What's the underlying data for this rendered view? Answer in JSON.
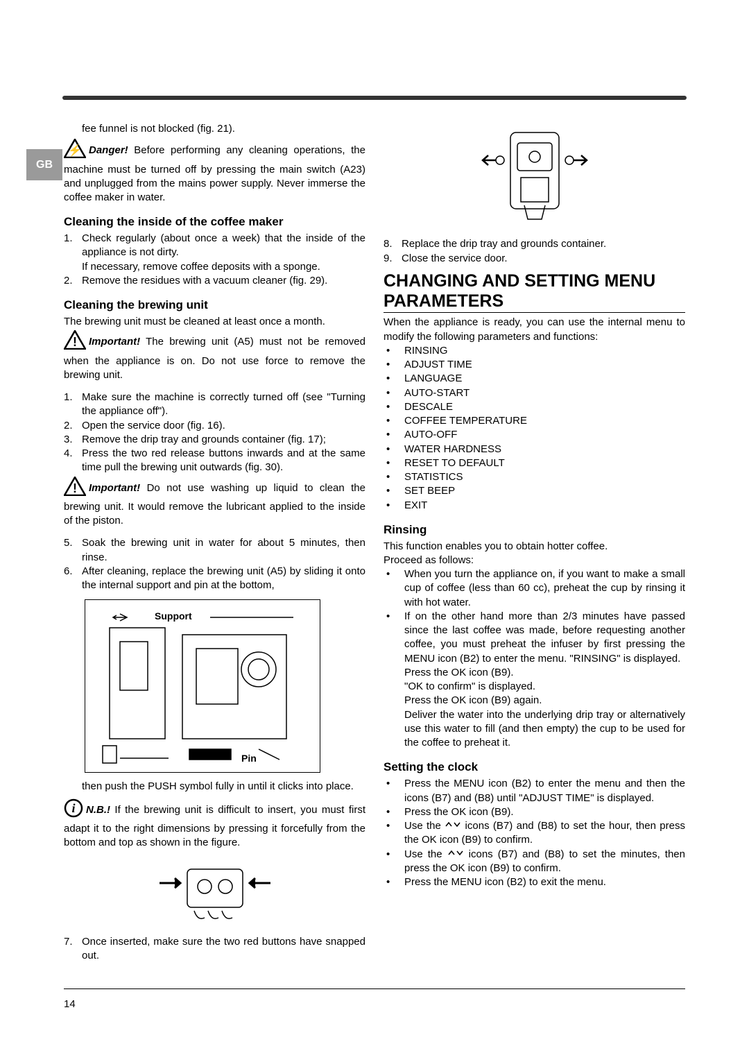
{
  "lang_tab": "GB",
  "page_number": "14",
  "left": {
    "intro_cont": "fee funnel is not blocked (fig. 21).",
    "danger_label": "Danger!",
    "danger_text": "  Before performing any cleaning operations, the machine must be turned off by pressing the main switch (A23) and unplugged from the mains power supply. Never immerse the coffee maker in water.",
    "h_inside": "Cleaning the inside of the coffee maker",
    "inside_1": "Check regularly (about once a week) that the inside of the appliance is not dirty.",
    "inside_1b": "If necessary, remove coffee deposits with a sponge.",
    "inside_2": "Remove the residues with a vacuum cleaner (fig. 29).",
    "h_brew": "Cleaning the brewing unit",
    "brew_intro": "The brewing unit must be cleaned at least once a month.",
    "important_label": "Important!",
    "imp1_text": "  The brewing unit (A5) must not be removed when the appliance is on.  Do not use force to remove the brewing unit.",
    "brew_1": "Make sure the machine is correctly turned off (see \"Turning the appliance off\").",
    "brew_2": "Open the service door (fig. 16).",
    "brew_3": "Remove the drip tray and grounds container (fig. 17);",
    "brew_4": "Press the two red release buttons inwards and at the same time pull the brewing unit outwards (fig. 30).",
    "imp2_text": "  Do not use washing up liquid to clean the brewing unit. It would remove the lubricant applied to the inside of the piston.",
    "brew_5": "Soak the brewing unit in water for about 5 minutes, then rinse.",
    "brew_6": "After cleaning, replace the brewing unit (A5) by sliding it onto the internal support and pin at the bottom,",
    "fig_support": "Support",
    "fig_pin": "Pin",
    "push_text": "then push the PUSH symbol fully in until it clicks into place.",
    "nb_label": "N.B.!",
    "nb_text": "  If the brewing unit is difficult to insert, you must first adapt it to the right dimensions by pressing it forcefully from the bottom and top as shown in the figure.",
    "brew_7": "Once inserted, make sure the two red buttons have snapped out."
  },
  "right": {
    "step_8": "Replace the drip tray and grounds container.",
    "step_9": "Close the service door.",
    "h_menu": "CHANGING AND SETTING MENU PARAMETERS",
    "menu_intro": "When the appliance is ready, you can use the internal menu to modify the following parameters and functions:",
    "menu_items": [
      "RINSING",
      "ADJUST TIME",
      "LANGUAGE",
      "AUTO-START",
      "DESCALE",
      "COFFEE TEMPERATURE",
      "AUTO-OFF",
      "WATER HARDNESS",
      "RESET TO DEFAULT",
      "STATISTICS",
      "SET BEEP",
      "EXIT"
    ],
    "h_rinsing": "Rinsing",
    "rinsing_intro1": "This function enables you to obtain hotter coffee.",
    "rinsing_intro2": "Proceed as follows:",
    "rinsing_b1": "When you turn the appliance on, if you want to make a small cup of coffee (less than 60 cc), preheat the cup by rinsing it with hot water.",
    "rinsing_b2a": "If on the other hand more than 2/3 minutes have passed since the last coffee was made, before requesting another coffee, you must preheat the infuser by first pressing the MENU icon (B2) to enter the menu. \"RINSING\" is displayed.",
    "rinsing_b2b": "Press the OK icon (B9).",
    "rinsing_b2c": "\"OK to confirm\" is displayed.",
    "rinsing_b2d": "Press the OK icon (B9) again.",
    "rinsing_b2e": "Deliver the water into the underlying drip tray or alternatively use this water to fill (and then empty) the cup to be used for the coffee to preheat it.",
    "h_clock": "Setting the clock",
    "clock_b1": "Press the MENU icon (B2) to enter the menu and then the icons (B7) and (B8) until \"ADJUST TIME\" is displayed.",
    "clock_b2": "Press the OK icon (B9).",
    "clock_b3a": "Use the   ",
    "clock_b3b": "   icons (B7) and (B8) to set the hour, then press the OK icon (B9) to confirm.",
    "clock_b4a": "Use the   ",
    "clock_b4b": "   icons (B7) and (B8) to set the minutes, then press the OK icon (B9) to confirm.",
    "clock_b5": "Press the MENU icon (B2) to exit the menu."
  }
}
